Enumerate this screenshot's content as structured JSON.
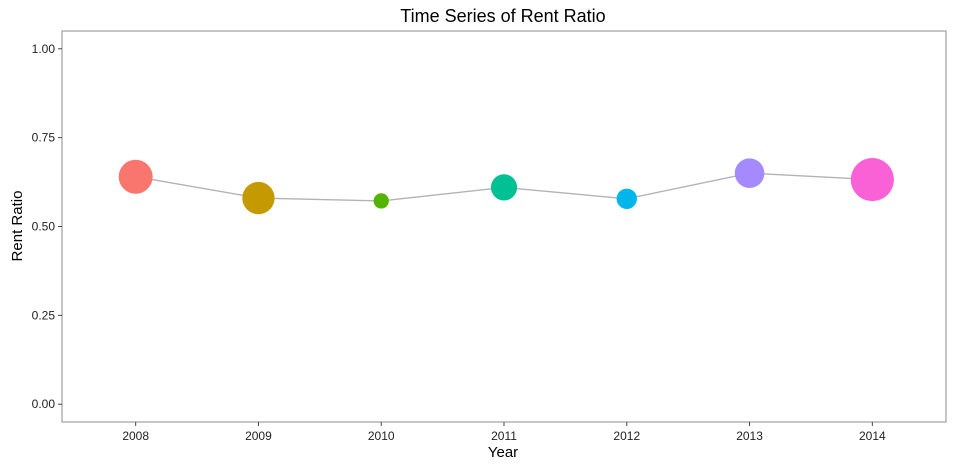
{
  "chart_data": {
    "type": "scatter",
    "title": "Time Series of Rent Ratio",
    "xlabel": "Year",
    "ylabel": "Rent Ratio",
    "ylim": [
      -0.05,
      1.05
    ],
    "yticks": [
      0.0,
      0.25,
      0.5,
      0.75,
      1.0
    ],
    "ytick_labels": [
      "0.00",
      "0.25",
      "0.50",
      "0.75",
      "1.00"
    ],
    "categories": [
      "2008",
      "2009",
      "2010",
      "2011",
      "2012",
      "2013",
      "2014"
    ],
    "values": [
      0.64,
      0.58,
      0.572,
      0.61,
      0.578,
      0.65,
      0.632
    ],
    "point_sizes": [
      1.0,
      0.95,
      0.45,
      0.77,
      0.6,
      0.87,
      1.27
    ],
    "colors": [
      "#F8766D",
      "#C49A00",
      "#53B400",
      "#00C094",
      "#00B6EB",
      "#A58AFF",
      "#FB61D7"
    ],
    "line_color": "#b3b3b3",
    "grid": false,
    "legend": "none"
  }
}
